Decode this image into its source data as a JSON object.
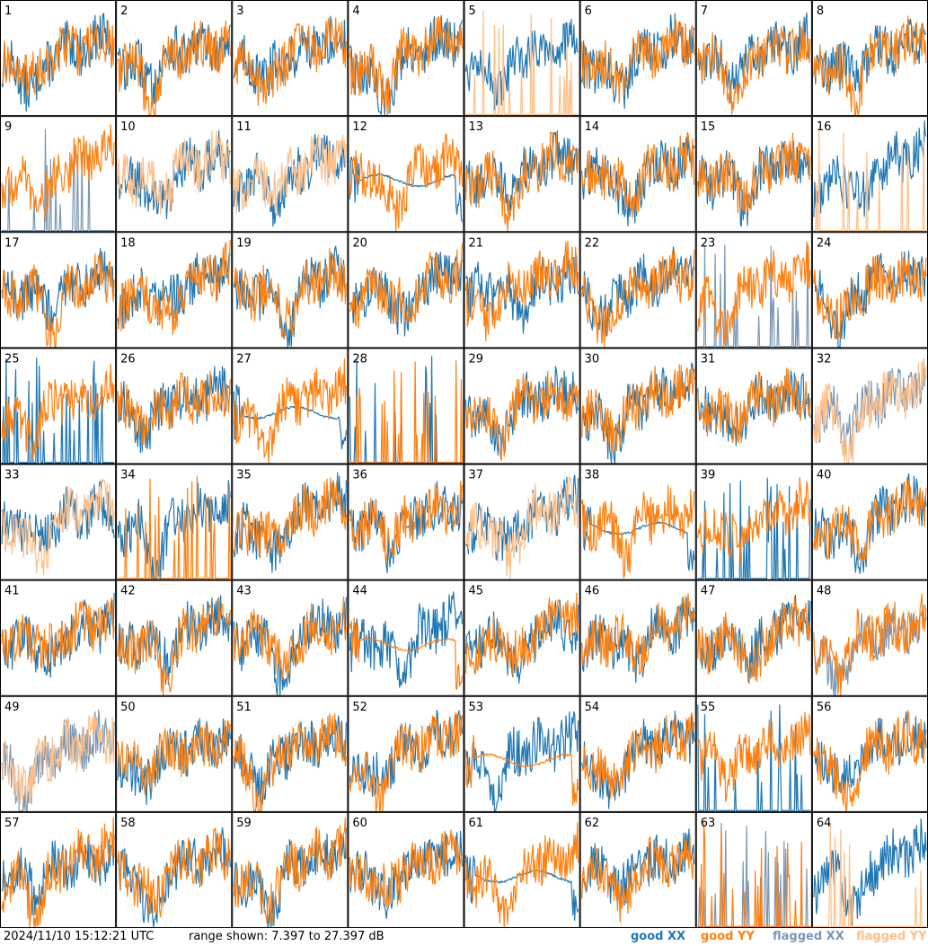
{
  "footer": {
    "timestamp": "2024/11/10 15:12:21 UTC",
    "range_text": "range shown: 7.397 to 27.397 dB"
  },
  "legend": [
    {
      "label": "good XX",
      "color": "#1f77b4"
    },
    {
      "label": "good YY",
      "color": "#ff7f0e"
    },
    {
      "label": "flagged XX",
      "color": "#7a97b4"
    },
    {
      "label": "flagged YY",
      "color": "#ffbf87"
    }
  ],
  "chart_data": {
    "type": "line",
    "layout": "8x8 small multiples",
    "ylim": [
      7.397,
      27.397
    ],
    "yunit": "dB",
    "grid": false,
    "colors": {
      "good_xx": "#1f77b4",
      "good_yy": "#ff7f0e",
      "flagged_xx": "#7a97b4",
      "flagged_yy": "#ffbf87"
    },
    "panels": [
      {
        "label": "1",
        "xx": "good",
        "yy": "good"
      },
      {
        "label": "2",
        "xx": "good",
        "yy": "good"
      },
      {
        "label": "3",
        "xx": "good",
        "yy": "good"
      },
      {
        "label": "4",
        "xx": "good",
        "yy": "good"
      },
      {
        "label": "5",
        "xx": "good",
        "yy": "flagged",
        "yy_shape": "spikes"
      },
      {
        "label": "6",
        "xx": "good",
        "yy": "good"
      },
      {
        "label": "7",
        "xx": "good",
        "yy": "good"
      },
      {
        "label": "8",
        "xx": "good",
        "yy": "good"
      },
      {
        "label": "9",
        "xx": "flagged",
        "yy": "good",
        "xx_shape": "spikes"
      },
      {
        "label": "10",
        "xx": "good",
        "yy": "flagged"
      },
      {
        "label": "11",
        "xx": "good",
        "yy": "flagged"
      },
      {
        "label": "12",
        "xx": "good",
        "yy": "good",
        "xx_shape": "smooth"
      },
      {
        "label": "13",
        "xx": "good",
        "yy": "good"
      },
      {
        "label": "14",
        "xx": "good",
        "yy": "good"
      },
      {
        "label": "15",
        "xx": "good",
        "yy": "good"
      },
      {
        "label": "16",
        "xx": "good",
        "yy": "flagged",
        "yy_shape": "spikes"
      },
      {
        "label": "17",
        "xx": "good",
        "yy": "good"
      },
      {
        "label": "18",
        "xx": "good",
        "yy": "good"
      },
      {
        "label": "19",
        "xx": "good",
        "yy": "good"
      },
      {
        "label": "20",
        "xx": "good",
        "yy": "good"
      },
      {
        "label": "21",
        "xx": "good",
        "yy": "good"
      },
      {
        "label": "22",
        "xx": "good",
        "yy": "good"
      },
      {
        "label": "23",
        "xx": "flagged",
        "yy": "good",
        "xx_shape": "spikes"
      },
      {
        "label": "24",
        "xx": "good",
        "yy": "good"
      },
      {
        "label": "25",
        "xx": "good",
        "yy": "good",
        "xx_shape": "spikes"
      },
      {
        "label": "26",
        "xx": "good",
        "yy": "good"
      },
      {
        "label": "27",
        "xx": "good",
        "yy": "good",
        "xx_shape": "smooth"
      },
      {
        "label": "28",
        "xx": "good",
        "yy": "good",
        "yy_shape": "spikes",
        "xx_shape": "spikes"
      },
      {
        "label": "29",
        "xx": "good",
        "yy": "good"
      },
      {
        "label": "30",
        "xx": "good",
        "yy": "good"
      },
      {
        "label": "31",
        "xx": "good",
        "yy": "good"
      },
      {
        "label": "32",
        "xx": "flagged",
        "yy": "flagged"
      },
      {
        "label": "33",
        "xx": "good",
        "yy": "flagged"
      },
      {
        "label": "34",
        "xx": "good",
        "yy": "good",
        "yy_shape": "spikes"
      },
      {
        "label": "35",
        "xx": "good",
        "yy": "good"
      },
      {
        "label": "36",
        "xx": "good",
        "yy": "good"
      },
      {
        "label": "37",
        "xx": "good",
        "yy": "flagged"
      },
      {
        "label": "38",
        "xx": "good",
        "yy": "good",
        "xx_shape": "smooth"
      },
      {
        "label": "39",
        "xx": "good",
        "yy": "good",
        "xx_shape": "spikes"
      },
      {
        "label": "40",
        "xx": "good",
        "yy": "good"
      },
      {
        "label": "41",
        "xx": "good",
        "yy": "good"
      },
      {
        "label": "42",
        "xx": "good",
        "yy": "good"
      },
      {
        "label": "43",
        "xx": "good",
        "yy": "good"
      },
      {
        "label": "44",
        "xx": "good",
        "yy": "good",
        "yy_shape": "smooth"
      },
      {
        "label": "45",
        "xx": "good",
        "yy": "good"
      },
      {
        "label": "46",
        "xx": "good",
        "yy": "good"
      },
      {
        "label": "47",
        "xx": "good",
        "yy": "good"
      },
      {
        "label": "48",
        "xx": "flagged",
        "yy": "good"
      },
      {
        "label": "49",
        "xx": "flagged",
        "yy": "flagged"
      },
      {
        "label": "50",
        "xx": "good",
        "yy": "good"
      },
      {
        "label": "51",
        "xx": "good",
        "yy": "good"
      },
      {
        "label": "52",
        "xx": "good",
        "yy": "good"
      },
      {
        "label": "53",
        "xx": "good",
        "yy": "good",
        "yy_shape": "smooth"
      },
      {
        "label": "54",
        "xx": "good",
        "yy": "good"
      },
      {
        "label": "55",
        "xx": "good",
        "yy": "good",
        "xx_shape": "spikes"
      },
      {
        "label": "56",
        "xx": "good",
        "yy": "good"
      },
      {
        "label": "57",
        "xx": "good",
        "yy": "good"
      },
      {
        "label": "58",
        "xx": "good",
        "yy": "good"
      },
      {
        "label": "59",
        "xx": "good",
        "yy": "good"
      },
      {
        "label": "60",
        "xx": "good",
        "yy": "good"
      },
      {
        "label": "61",
        "xx": "good",
        "yy": "good",
        "xx_shape": "smooth"
      },
      {
        "label": "62",
        "xx": "good",
        "yy": "good"
      },
      {
        "label": "63",
        "xx": "flagged",
        "yy": "good",
        "yy_shape": "spikes",
        "xx_shape": "spikes"
      },
      {
        "label": "64",
        "xx": "good",
        "yy": "flagged",
        "yy_shape": "spikes"
      }
    ]
  }
}
